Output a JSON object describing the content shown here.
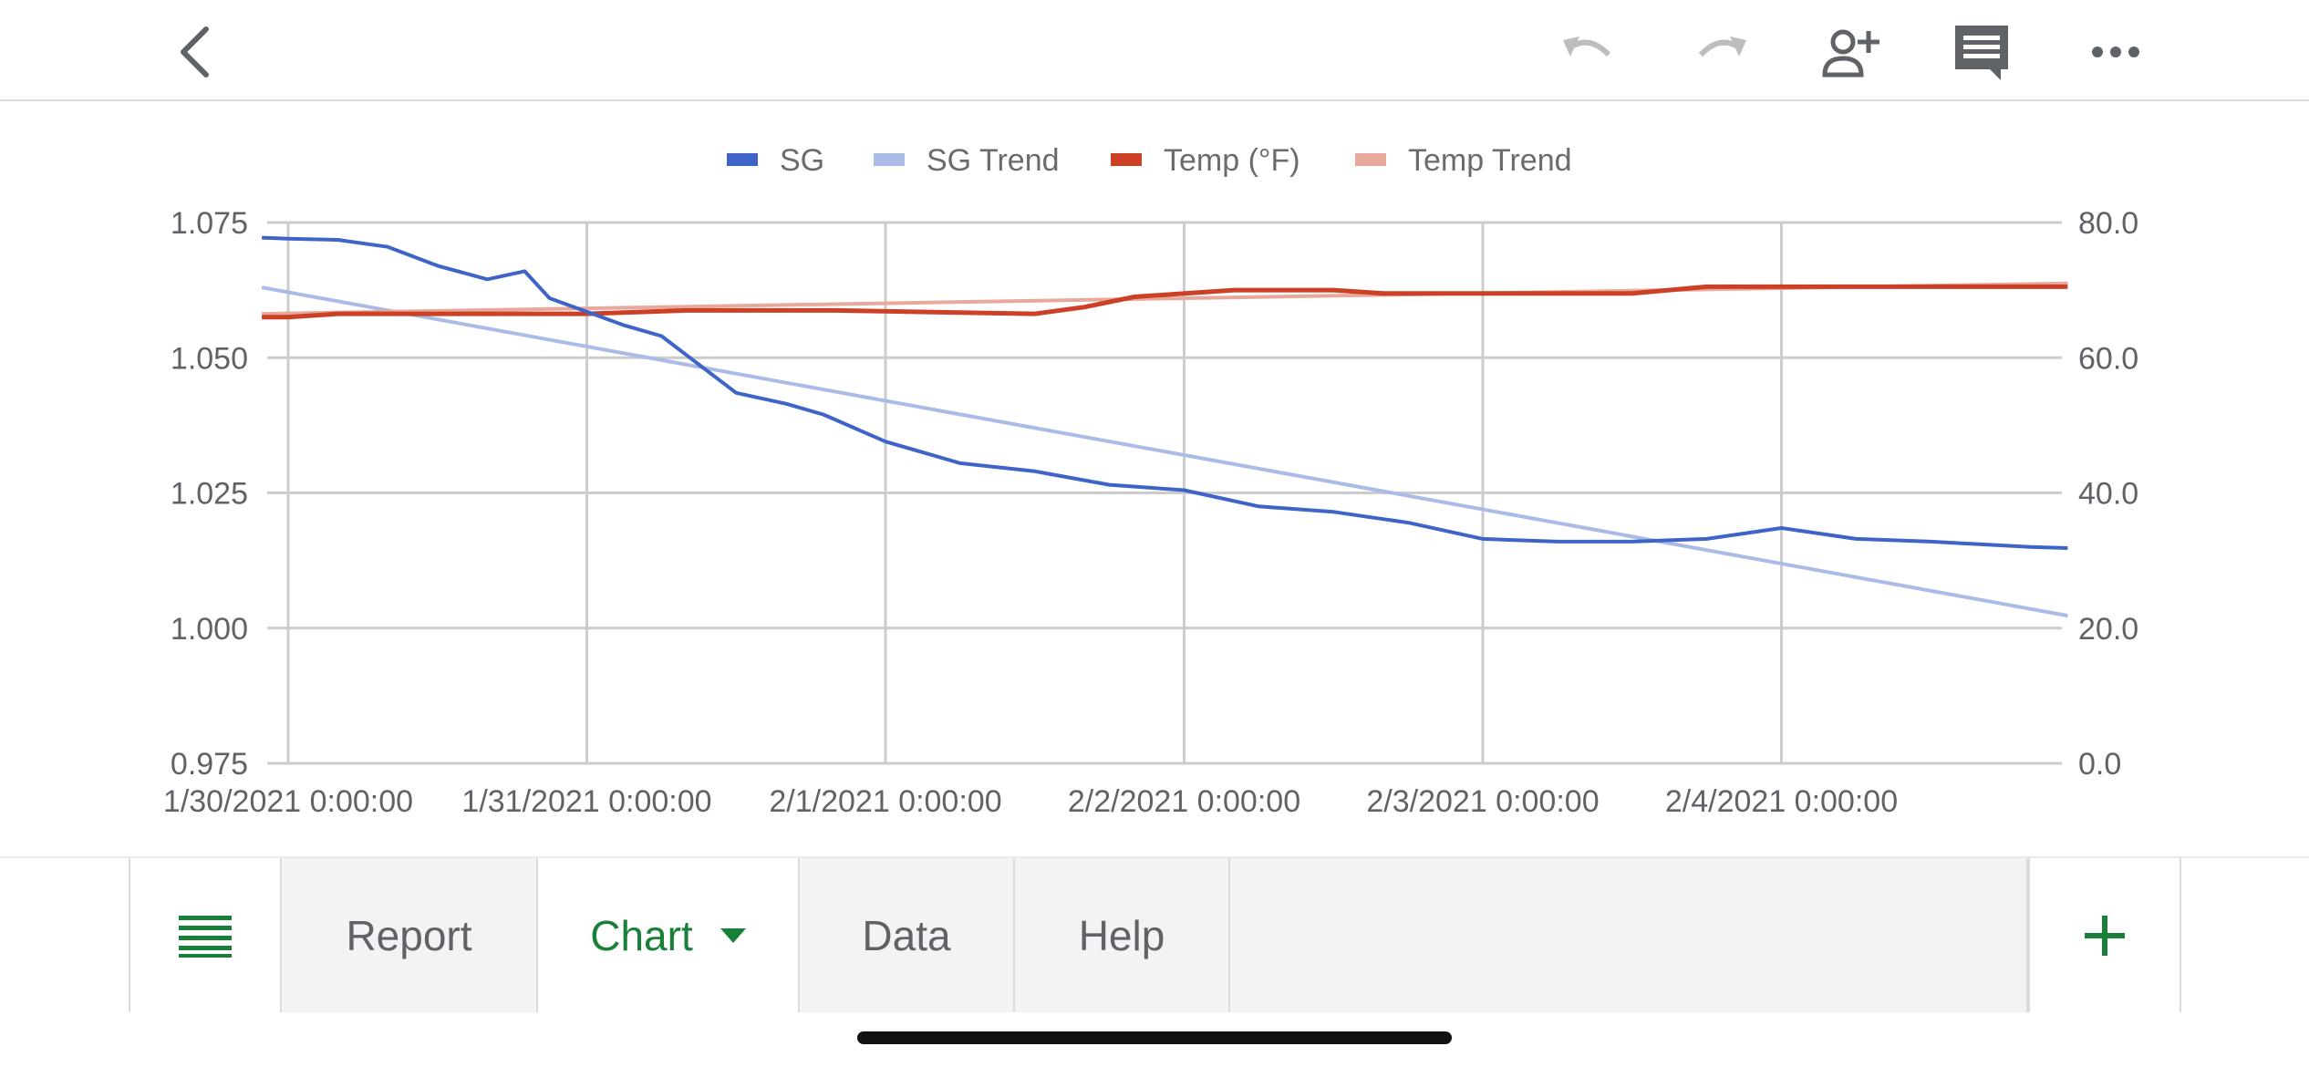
{
  "toolbar": {
    "icons": [
      "back-icon",
      "undo-icon",
      "redo-icon",
      "add-person-icon",
      "comment-icon",
      "more-icon"
    ]
  },
  "chart_data": {
    "type": "line",
    "title": "",
    "xlabel": "",
    "ylabel": "",
    "legend_position": "top",
    "grid": true,
    "x_ticks": [
      "1/30/2021 0:00:00",
      "1/31/2021 0:00:00",
      "2/1/2021 0:00:00",
      "2/2/2021 0:00:00",
      "2/3/2021 0:00:00",
      "2/4/2021 0:00:00"
    ],
    "x_range": [
      "1/30/2021 0:00:00",
      "2/4/2021 0:00:00"
    ],
    "y_left": {
      "ticks": [
        "1.075",
        "1.050",
        "1.025",
        "1.000",
        "0.975"
      ],
      "range": [
        0.975,
        1.075
      ]
    },
    "y_right": {
      "ticks": [
        "80.0",
        "60.0",
        "40.0",
        "20.0",
        "0.0"
      ],
      "range": [
        0,
        80
      ]
    },
    "series": [
      {
        "name": "SG",
        "axis": "left",
        "color": "#3e64c8",
        "width": 4,
        "points": [
          [
            "1/29/2021 21:53",
            1.0722
          ],
          [
            "1/30/2021 0:00",
            1.072
          ],
          [
            "1/30/2021 4:00",
            1.0718
          ],
          [
            "1/30/2021 8:00",
            1.0705
          ],
          [
            "1/30/2021 12:00",
            1.067
          ],
          [
            "1/30/2021 16:00",
            1.0645
          ],
          [
            "1/30/2021 19:00",
            1.066
          ],
          [
            "1/30/2021 21:00",
            1.061
          ],
          [
            "1/31/2021 0:00",
            1.0585
          ],
          [
            "1/31/2021 3:00",
            1.056
          ],
          [
            "1/31/2021 6:00",
            1.054
          ],
          [
            "1/31/2021 8:00",
            1.0505
          ],
          [
            "1/31/2021 12:00",
            1.0435
          ],
          [
            "1/31/2021 16:00",
            1.0415
          ],
          [
            "1/31/2021 19:00",
            1.0395
          ],
          [
            "2/1/2021 0:00",
            1.0345
          ],
          [
            "2/1/2021 6:00",
            1.0305
          ],
          [
            "2/1/2021 12:00",
            1.029
          ],
          [
            "2/1/2021 18:00",
            1.0265
          ],
          [
            "2/2/2021 0:00",
            1.0255
          ],
          [
            "2/2/2021 6:00",
            1.0225
          ],
          [
            "2/2/2021 12:00",
            1.0215
          ],
          [
            "2/2/2021 18:00",
            1.0195
          ],
          [
            "2/3/2021 0:00",
            1.0165
          ],
          [
            "2/3/2021 6:00",
            1.016
          ],
          [
            "2/3/2021 12:00",
            1.016
          ],
          [
            "2/3/2021 18:00",
            1.0165
          ],
          [
            "2/4/2021 0:00",
            1.0185
          ],
          [
            "2/4/2021 6:00",
            1.0165
          ],
          [
            "2/4/2021 12:00",
            1.016
          ],
          [
            "2/4/2021 20:00",
            1.015
          ],
          [
            "2/4/2021 23:00",
            1.0148
          ]
        ]
      },
      {
        "name": "SG Trend",
        "axis": "left",
        "color": "#aabbe7",
        "width": 4,
        "points": [
          [
            "1/29/2021 21:53",
            1.063
          ],
          [
            "2/4/2021 23:00",
            1.0023
          ]
        ]
      },
      {
        "name": "Temp (°F)",
        "axis": "right",
        "color": "#cc4125",
        "width": 5,
        "points": [
          [
            "1/29/2021 21:53",
            66.0
          ],
          [
            "1/30/2021 0:00",
            66.0
          ],
          [
            "1/30/2021 4:00",
            66.5
          ],
          [
            "1/30/2021 12:00",
            66.5
          ],
          [
            "1/31/2021 0:00",
            66.5
          ],
          [
            "1/31/2021 8:00",
            67.0
          ],
          [
            "1/31/2021 20:00",
            67.0
          ],
          [
            "2/1/2021 12:00",
            66.5
          ],
          [
            "2/1/2021 16:00",
            67.5
          ],
          [
            "2/1/2021 20:00",
            69.0
          ],
          [
            "2/2/2021 4:00",
            70.0
          ],
          [
            "2/2/2021 12:00",
            70.0
          ],
          [
            "2/2/2021 16:00",
            69.5
          ],
          [
            "2/3/2021 0:00",
            69.5
          ],
          [
            "2/3/2021 12:00",
            69.5
          ],
          [
            "2/3/2021 18:00",
            70.5
          ],
          [
            "2/4/2021 0:00",
            70.5
          ],
          [
            "2/4/2021 12:00",
            70.5
          ],
          [
            "2/4/2021 23:00",
            70.5
          ]
        ]
      },
      {
        "name": "Temp Trend",
        "axis": "right",
        "color": "#e8a99c",
        "width": 4,
        "points": [
          [
            "1/29/2021 21:53",
            66.5
          ],
          [
            "2/4/2021 23:00",
            71.0
          ]
        ]
      }
    ]
  },
  "tabs": {
    "menu_icon": "sheets-list-icon",
    "items": [
      {
        "label": "Report",
        "active": false
      },
      {
        "label": "Chart",
        "active": true
      },
      {
        "label": "Data",
        "active": false
      },
      {
        "label": "Help",
        "active": false
      }
    ],
    "add_icon": "add-sheet-icon"
  },
  "colors": {
    "accent_green": "#188038",
    "grid": "#cccccc",
    "axis_text": "#5f6368",
    "legend_text": "#6b6b6b"
  }
}
